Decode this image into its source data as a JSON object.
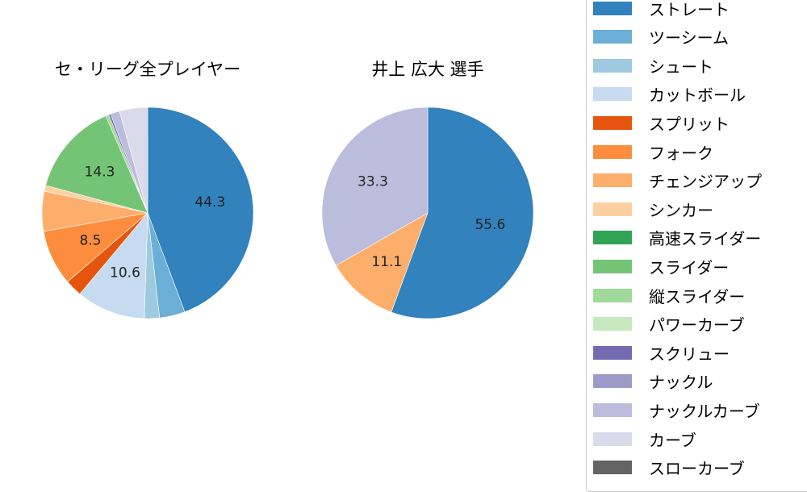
{
  "chart_data": [
    {
      "type": "pie",
      "title": "セ・リーグ全プレイヤー",
      "start_angle": 90,
      "direction": "clockwise",
      "categories": [
        "ストレート",
        "ツーシーム",
        "シュート",
        "カットボール",
        "スプリット",
        "フォーク",
        "チェンジアップ",
        "シンカー",
        "高速スライダー",
        "スライダー",
        "縦スライダー",
        "パワーカーブ",
        "スクリュー",
        "ナックル",
        "ナックルカーブ",
        "カーブ",
        "スローカーブ"
      ],
      "values": [
        44.3,
        3.9,
        2.3,
        10.6,
        2.6,
        8.5,
        6.1,
        0.9,
        0.0,
        14.3,
        0.5,
        0.0,
        0.3,
        0.0,
        1.4,
        4.3,
        0.0
      ],
      "labels_shown": {
        "ストレート": "44.3",
        "カットボール": "10.6",
        "フォーク": "8.5",
        "スライダー": "14.3"
      }
    },
    {
      "type": "pie",
      "title": "井上 広大  選手",
      "start_angle": 90,
      "direction": "clockwise",
      "categories": [
        "ストレート",
        "チェンジアップ",
        "ナックルカーブ"
      ],
      "values": [
        55.6,
        11.1,
        33.3
      ],
      "labels_shown": {
        "ストレート": "55.6",
        "チェンジアップ": "11.1",
        "ナックルカーブ": "33.3"
      }
    }
  ],
  "titles": {
    "left": "セ・リーグ全プレイヤー",
    "right": "井上 広大  選手"
  },
  "legend": [
    {
      "label": "ストレート",
      "color": "#3182bd"
    },
    {
      "label": "ツーシーム",
      "color": "#6baed6"
    },
    {
      "label": "シュート",
      "color": "#9ecae1"
    },
    {
      "label": "カットボール",
      "color": "#c6dbef"
    },
    {
      "label": "スプリット",
      "color": "#e6550d"
    },
    {
      "label": "フォーク",
      "color": "#fd8d3c"
    },
    {
      "label": "チェンジアップ",
      "color": "#fdae6b"
    },
    {
      "label": "シンカー",
      "color": "#fdd0a2"
    },
    {
      "label": "高速スライダー",
      "color": "#31a354"
    },
    {
      "label": "スライダー",
      "color": "#74c476"
    },
    {
      "label": "縦スライダー",
      "color": "#a1d99b"
    },
    {
      "label": "パワーカーブ",
      "color": "#c7e9c0"
    },
    {
      "label": "スクリュー",
      "color": "#756bb1"
    },
    {
      "label": "ナックル",
      "color": "#9e9ac8"
    },
    {
      "label": "ナックルカーブ",
      "color": "#bcbddc"
    },
    {
      "label": "カーブ",
      "color": "#dadaeb"
    },
    {
      "label": "スローカーブ",
      "color": "#636363"
    }
  ]
}
